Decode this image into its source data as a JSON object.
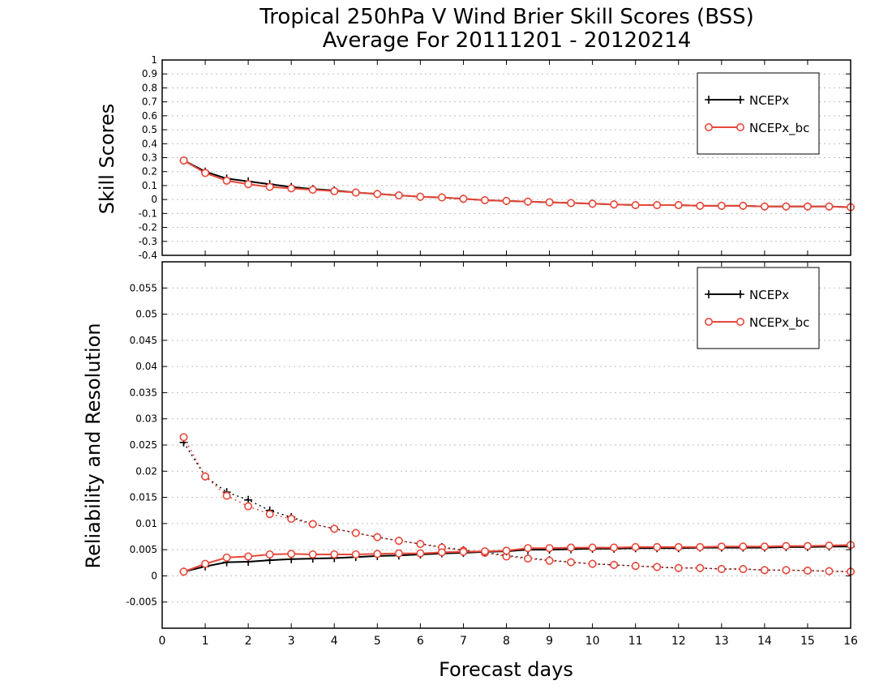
{
  "chart_data": [
    {
      "type": "line",
      "panel": "top",
      "title": "Tropical 250hPa V Wind Brier Skill Scores (BSS)",
      "subtitle": "Average For 20111201 - 20120214",
      "ylabel": "Skill Scores",
      "ylim": [
        -0.4,
        1
      ],
      "yticks": [
        -0.4,
        -0.3,
        -0.2,
        -0.1,
        0,
        0.1,
        0.2,
        0.3,
        0.4,
        0.5,
        0.6,
        0.7,
        0.8,
        0.9,
        1
      ],
      "ytick_labels": [
        "-0.4",
        "-0.3",
        "-0.2",
        "-0.1",
        "0",
        "0.1",
        "0.2",
        "0.3",
        "0.4",
        "0.5",
        "0.6",
        "0.7",
        "0.8",
        "0.9",
        "1"
      ],
      "grid": true,
      "legend": "top-right",
      "x": [
        0.5,
        1,
        1.5,
        2,
        2.5,
        3,
        3.5,
        4,
        4.5,
        5,
        5.5,
        6,
        6.5,
        7,
        7.5,
        8,
        8.5,
        9,
        9.5,
        10,
        10.5,
        11,
        11.5,
        12,
        12.5,
        13,
        13.5,
        14,
        14.5,
        15,
        15.5,
        16
      ],
      "series": [
        {
          "name": "NCEPx",
          "color": "#000000",
          "marker": "plus",
          "style": "solid",
          "values": [
            0.28,
            0.2,
            0.15,
            0.13,
            0.11,
            0.09,
            0.075,
            0.065,
            0.05,
            0.04,
            0.03,
            0.02,
            0.015,
            0.005,
            -0.005,
            -0.01,
            -0.015,
            -0.02,
            -0.025,
            -0.03,
            -0.035,
            -0.04,
            -0.04,
            -0.04,
            -0.045,
            -0.045,
            -0.045,
            -0.05,
            -0.05,
            -0.05,
            -0.05,
            -0.055
          ]
        },
        {
          "name": "NCEPx_bc",
          "color": "#e8483a",
          "marker": "circle",
          "style": "solid",
          "values": [
            0.28,
            0.19,
            0.135,
            0.11,
            0.09,
            0.08,
            0.07,
            0.06,
            0.05,
            0.04,
            0.03,
            0.02,
            0.015,
            0.005,
            -0.005,
            -0.01,
            -0.015,
            -0.02,
            -0.025,
            -0.03,
            -0.035,
            -0.04,
            -0.04,
            -0.04,
            -0.045,
            -0.045,
            -0.045,
            -0.05,
            -0.05,
            -0.05,
            -0.05,
            -0.055
          ]
        }
      ]
    },
    {
      "type": "line",
      "panel": "bottom",
      "xlabel": "Forecast days",
      "ylabel": "Reliability and Resolution",
      "xlim": [
        0,
        16
      ],
      "xticks": [
        0,
        1,
        2,
        3,
        4,
        5,
        6,
        7,
        8,
        9,
        10,
        11,
        12,
        13,
        14,
        15,
        16
      ],
      "xtick_labels": [
        "0",
        "1",
        "2",
        "3",
        "4",
        "5",
        "6",
        "7",
        "8",
        "9",
        "10",
        "11",
        "12",
        "13",
        "14",
        "15",
        "16"
      ],
      "ylim": [
        -0.01,
        0.06
      ],
      "yticks": [
        -0.005,
        0,
        0.005,
        0.01,
        0.015,
        0.02,
        0.025,
        0.03,
        0.035,
        0.04,
        0.045,
        0.05,
        0.055
      ],
      "ytick_labels": [
        "-0.005",
        "0",
        "0.005",
        "0.01",
        "0.015",
        "0.02",
        "0.025",
        "0.03",
        "0.035",
        "0.04",
        "0.045",
        "0.05",
        "0.055"
      ],
      "grid": true,
      "legend": "top-right",
      "x": [
        0.5,
        1,
        1.5,
        2,
        2.5,
        3,
        3.5,
        4,
        4.5,
        5,
        5.5,
        6,
        6.5,
        7,
        7.5,
        8,
        8.5,
        9,
        9.5,
        10,
        10.5,
        11,
        11.5,
        12,
        12.5,
        13,
        13.5,
        14,
        14.5,
        15,
        15.5,
        16
      ],
      "series": [
        {
          "name": "NCEPx",
          "color": "#000000",
          "marker": "plus",
          "style": "dotted",
          "values": [
            0.0255,
            0.019,
            0.016,
            0.0145,
            0.0125,
            0.0112,
            0.0099,
            0.009,
            0.0082,
            0.0074,
            0.0067,
            0.0061,
            0.0055,
            0.0049,
            0.0045,
            0.0039,
            0.0034,
            0.003,
            0.0026,
            0.0023,
            0.0021,
            0.0019,
            0.0017,
            0.0015,
            0.0015,
            0.0013,
            0.0013,
            0.0011,
            0.0011,
            0.001,
            0.0009,
            0.0008
          ]
        },
        {
          "name": "NCEPx_bc",
          "color": "#e8483a",
          "marker": "circle",
          "style": "dotted",
          "values": [
            0.0265,
            0.019,
            0.0153,
            0.0133,
            0.0118,
            0.0109,
            0.0099,
            0.009,
            0.0082,
            0.0074,
            0.0067,
            0.0061,
            0.0054,
            0.0048,
            0.0044,
            0.0037,
            0.0033,
            0.0029,
            0.0026,
            0.0023,
            0.0021,
            0.0019,
            0.0017,
            0.0015,
            0.0015,
            0.0013,
            0.0013,
            0.0011,
            0.0011,
            0.001,
            0.0009,
            0.0008
          ]
        },
        {
          "name": "NCEPx",
          "color": "#000000",
          "marker": "plus",
          "style": "solid",
          "values": [
            0.0008,
            0.0018,
            0.0026,
            0.0027,
            0.003,
            0.0032,
            0.0033,
            0.0034,
            0.0036,
            0.0038,
            0.0039,
            0.0041,
            0.0043,
            0.0044,
            0.0046,
            0.0047,
            0.005,
            0.005,
            0.0051,
            0.0052,
            0.0052,
            0.0053,
            0.0053,
            0.0053,
            0.0054,
            0.0054,
            0.0054,
            0.0054,
            0.0055,
            0.0055,
            0.0056,
            0.0056
          ]
        },
        {
          "name": "NCEPx_bc",
          "color": "#e8483a",
          "marker": "circle",
          "style": "solid",
          "values": [
            0.0008,
            0.0023,
            0.0035,
            0.0037,
            0.0041,
            0.0042,
            0.0041,
            0.0041,
            0.0041,
            0.0042,
            0.0043,
            0.0043,
            0.0045,
            0.0046,
            0.0047,
            0.0048,
            0.0053,
            0.0053,
            0.0054,
            0.0054,
            0.0054,
            0.0055,
            0.0055,
            0.0055,
            0.0055,
            0.0056,
            0.0056,
            0.0056,
            0.0057,
            0.0057,
            0.0058,
            0.0059
          ]
        }
      ]
    }
  ],
  "legends": {
    "top": [
      {
        "label": "NCEPx",
        "color": "#000000",
        "marker": "plus"
      },
      {
        "label": "NCEPx_bc",
        "color": "#e8483a",
        "marker": "circle"
      }
    ],
    "bottom": [
      {
        "label": "NCEPx",
        "color": "#000000",
        "marker": "plus"
      },
      {
        "label": "NCEPx_bc",
        "color": "#e8483a",
        "marker": "circle"
      }
    ]
  }
}
